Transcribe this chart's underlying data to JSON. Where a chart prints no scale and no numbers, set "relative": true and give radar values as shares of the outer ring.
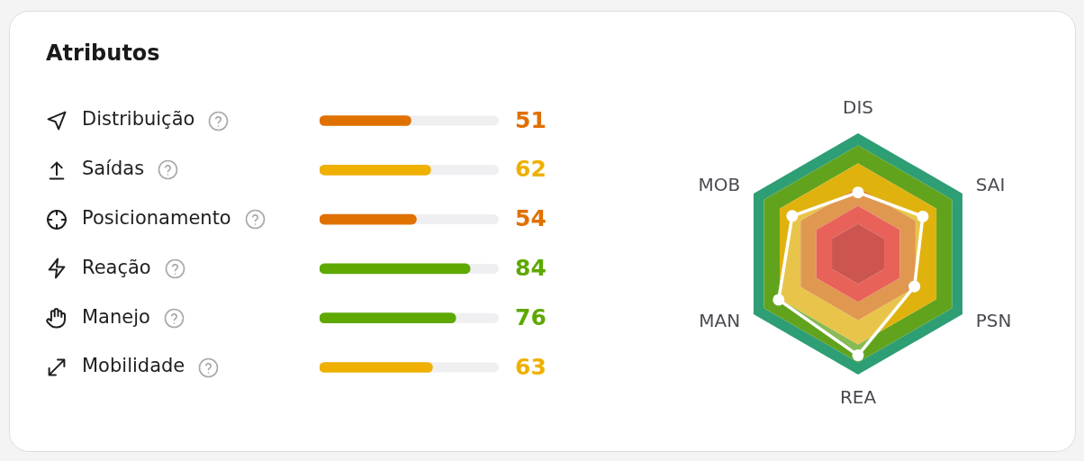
{
  "chart_data": [
    {
      "type": "bar",
      "title": "Atributos",
      "orientation": "horizontal",
      "categories": [
        "Distribuição",
        "Saídas",
        "Posicionamento",
        "Reação",
        "Manejo",
        "Mobilidade"
      ],
      "values": [
        51,
        62,
        54,
        84,
        76,
        63
      ],
      "colors": [
        "#e07000",
        "#efb000",
        "#e07000",
        "#5ea800",
        "#5ea800",
        "#efb000"
      ],
      "xlim": [
        0,
        100
      ],
      "data_labels": true,
      "tick_labels": "y"
    },
    {
      "type": "radar",
      "categories": [
        "DIS",
        "SAI",
        "PSN",
        "REA",
        "MAN",
        "MOB"
      ],
      "relative": true,
      "marker": "circle",
      "series": [
        {
          "color": "#ffffff",
          "values": [
            0.51,
            0.62,
            0.54,
            0.84,
            0.76,
            0.63
          ]
        }
      ]
    }
  ]
}
